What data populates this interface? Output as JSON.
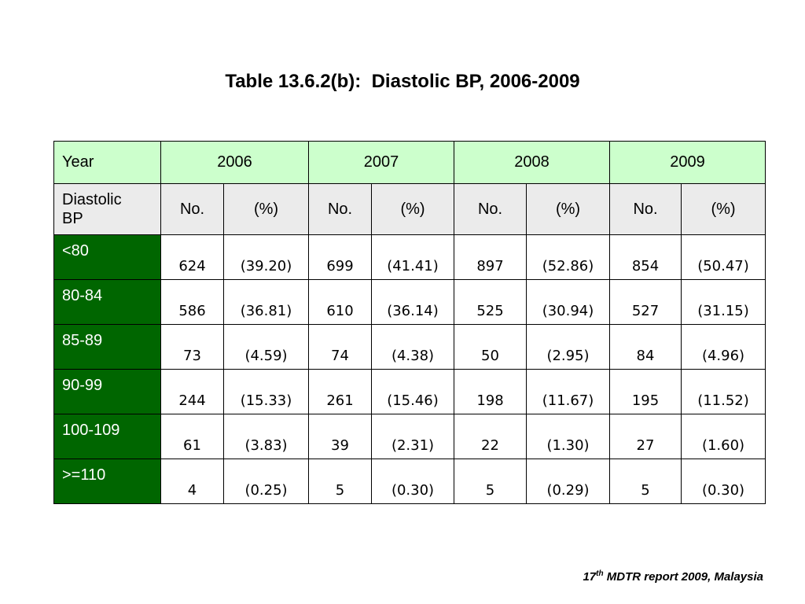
{
  "title": "Table 13.6.2(b):  Diastolic BP, 2006-2009",
  "header": {
    "year_label": "Year",
    "years": [
      "2006",
      "2007",
      "2008",
      "2009"
    ],
    "bp_label_line1": "Diastolic",
    "bp_label_line2": "BP",
    "no_label": "No.",
    "pct_label": "(%)"
  },
  "rows": [
    {
      "range": "<80",
      "cells": [
        "624",
        "(39.20)",
        "699",
        "(41.41)",
        "897",
        "(52.86)",
        "854",
        "(50.47)"
      ]
    },
    {
      "range": "80-84",
      "cells": [
        "586",
        "(36.81)",
        "610",
        "(36.14)",
        "525",
        "(30.94)",
        "527",
        "(31.15)"
      ]
    },
    {
      "range": "85-89",
      "cells": [
        "73",
        "(4.59)",
        "74",
        "(4.38)",
        "50",
        "(2.95)",
        "84",
        "(4.96)"
      ]
    },
    {
      "range": "90-99",
      "cells": [
        "244",
        "(15.33)",
        "261",
        "(15.46)",
        "198",
        "(11.67)",
        "195",
        "(11.52)"
      ]
    },
    {
      "range": "100-109",
      "cells": [
        "61",
        "(3.83)",
        "39",
        "(2.31)",
        "22",
        "(1.30)",
        "27",
        "(1.60)"
      ]
    },
    {
      "range": ">=110",
      "cells": [
        "4",
        "(0.25)",
        "5",
        "(0.30)",
        "5",
        "(0.29)",
        "5",
        "(0.30)"
      ]
    }
  ],
  "source": {
    "prefix": "17",
    "superscript": "th",
    "rest": " MDTR report 2009, Malaysia"
  },
  "colors": {
    "year_header_bg": "#ccffcc",
    "sub_header_bg": "#ebebeb",
    "range_cell_bg": "#006600"
  }
}
